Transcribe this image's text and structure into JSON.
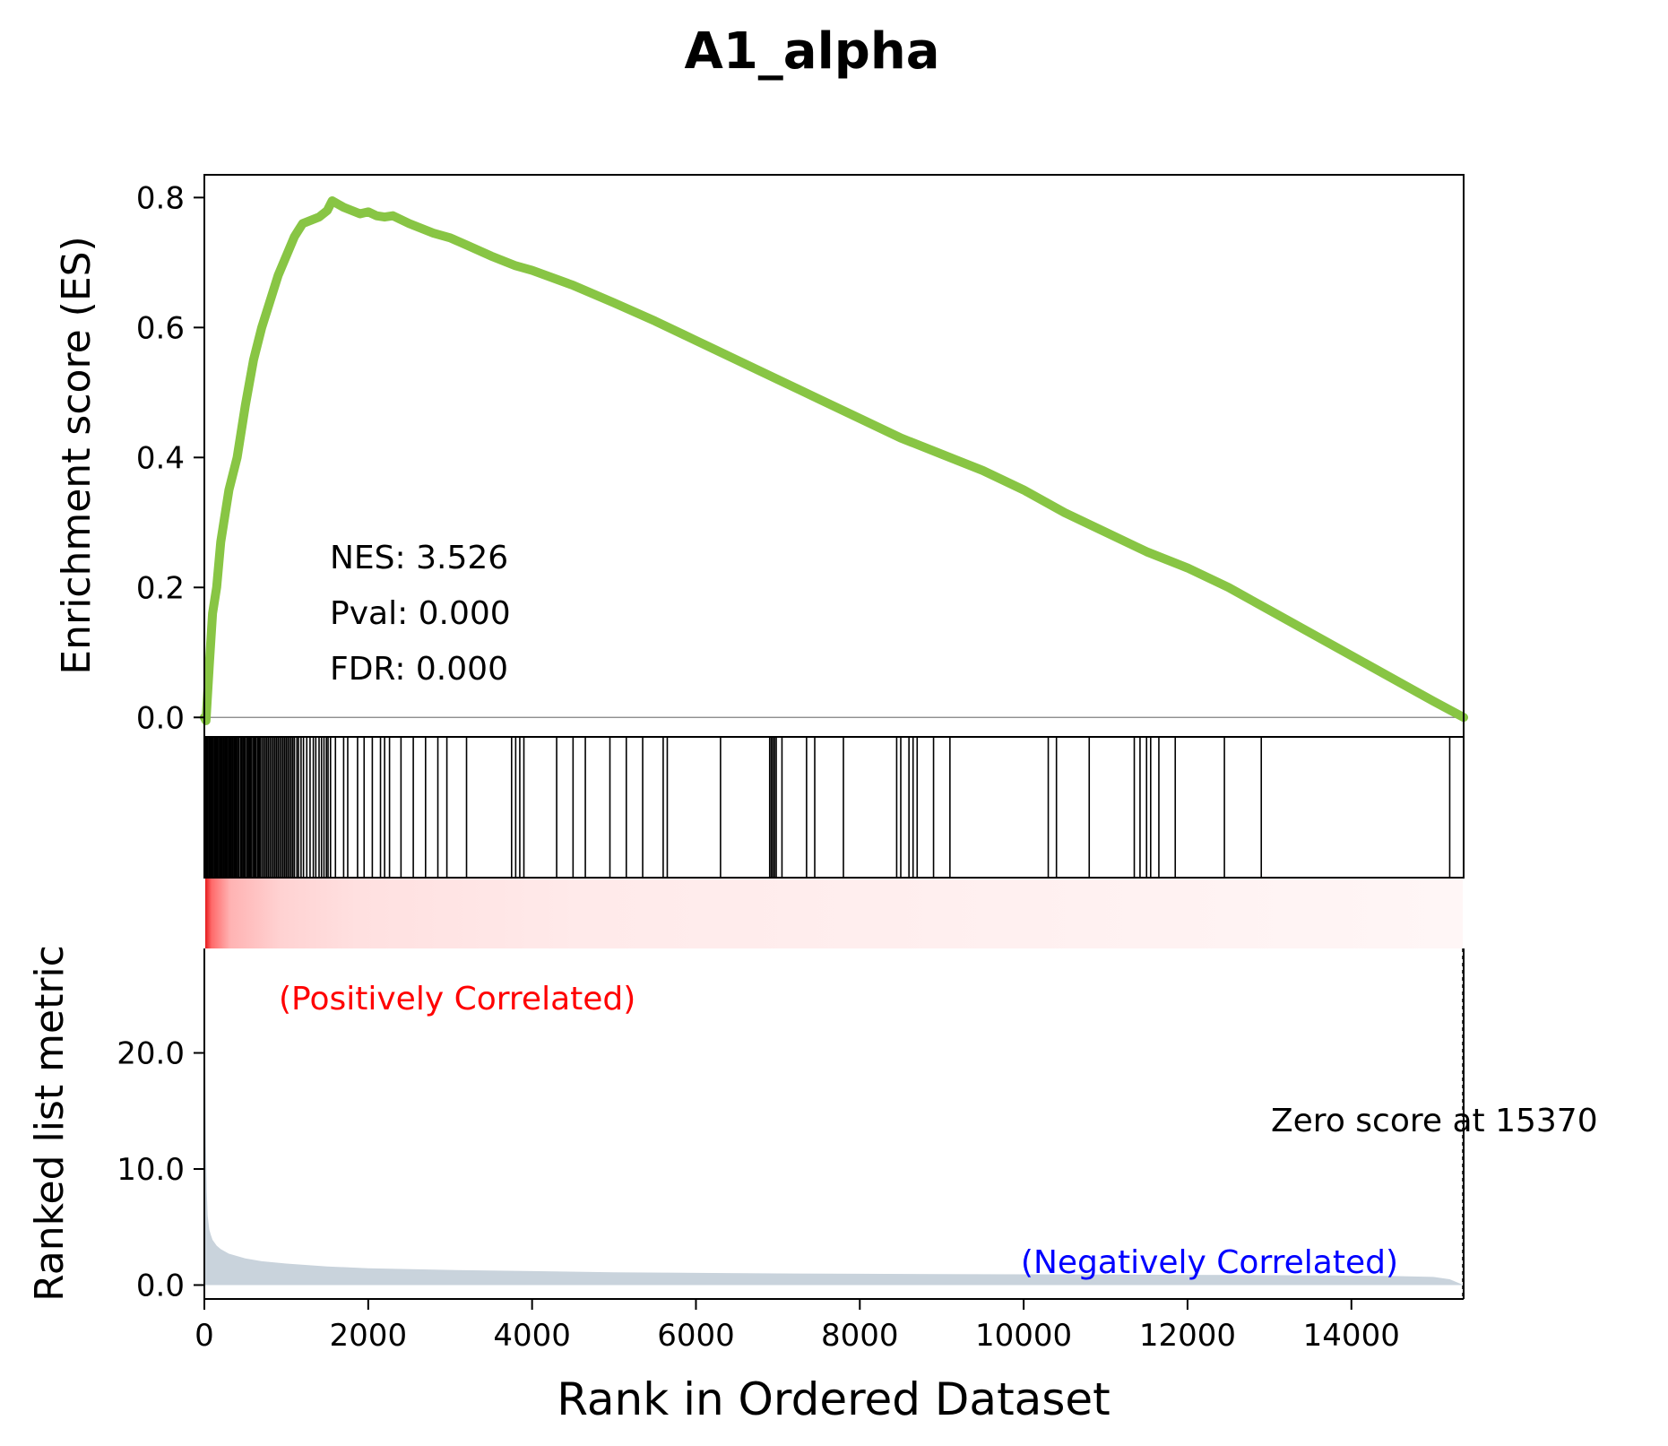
{
  "chart_data": {
    "type": "line",
    "title": "A1_alpha",
    "xlabel": "Rank in Ordered Dataset",
    "es_panel": {
      "ylabel": "Enrichment score (ES)",
      "ylim": [
        -0.03,
        0.835
      ],
      "yticks": [
        0.0,
        0.2,
        0.4,
        0.6,
        0.8
      ],
      "ytick_labels": [
        "0.0",
        "0.2",
        "0.4",
        "0.6",
        "0.8"
      ],
      "line_color": "#88c544",
      "series": {
        "x": [
          0,
          20,
          60,
          100,
          150,
          200,
          300,
          400,
          500,
          600,
          700,
          800,
          900,
          1000,
          1100,
          1200,
          1300,
          1400,
          1500,
          1560,
          1700,
          1800,
          1900,
          2000,
          2100,
          2200,
          2300,
          2500,
          2800,
          3000,
          3200,
          3500,
          3800,
          4000,
          4500,
          5000,
          5500,
          6000,
          6500,
          7000,
          7500,
          8000,
          8500,
          9000,
          9500,
          10000,
          10500,
          11000,
          11500,
          12000,
          12500,
          13000,
          13500,
          14000,
          14500,
          15000,
          15370
        ],
        "y": [
          0.0,
          -0.005,
          0.08,
          0.16,
          0.2,
          0.27,
          0.35,
          0.4,
          0.48,
          0.55,
          0.6,
          0.64,
          0.68,
          0.71,
          0.74,
          0.76,
          0.765,
          0.77,
          0.78,
          0.795,
          0.785,
          0.78,
          0.775,
          0.778,
          0.772,
          0.77,
          0.772,
          0.76,
          0.745,
          0.738,
          0.727,
          0.71,
          0.695,
          0.688,
          0.665,
          0.638,
          0.61,
          0.58,
          0.55,
          0.52,
          0.49,
          0.46,
          0.43,
          0.405,
          0.38,
          0.35,
          0.315,
          0.285,
          0.255,
          0.23,
          0.2,
          0.165,
          0.13,
          0.095,
          0.06,
          0.025,
          0.0
        ]
      }
    },
    "stats": {
      "nes": "NES: 3.526",
      "pval": "Pval: 0.000",
      "fdr": "FDR: 0.000"
    },
    "hits": [
      10,
      20,
      30,
      45,
      60,
      70,
      85,
      95,
      110,
      125,
      140,
      150,
      160,
      175,
      190,
      200,
      215,
      230,
      240,
      255,
      270,
      285,
      300,
      315,
      330,
      345,
      360,
      375,
      390,
      405,
      420,
      440,
      455,
      470,
      485,
      500,
      520,
      535,
      550,
      565,
      580,
      600,
      615,
      630,
      650,
      665,
      680,
      700,
      720,
      740,
      760,
      780,
      800,
      820,
      840,
      860,
      880,
      900,
      920,
      940,
      960,
      980,
      1000,
      1020,
      1040,
      1060,
      1080,
      1100,
      1130,
      1150,
      1180,
      1210,
      1250,
      1290,
      1330,
      1360,
      1400,
      1430,
      1460,
      1490,
      1510,
      1540,
      1600,
      1700,
      1750,
      1870,
      1950,
      2050,
      2150,
      2200,
      2260,
      2400,
      2550,
      2700,
      2850,
      2960,
      3200,
      3750,
      3800,
      3850,
      3900,
      4300,
      4500,
      4650,
      4950,
      5150,
      5350,
      5600,
      5650,
      6300,
      6900,
      6920,
      6940,
      6960,
      6980,
      7050,
      7350,
      7450,
      7800,
      8450,
      8500,
      8600,
      8650,
      8700,
      8900,
      9100,
      10300,
      10400,
      10800,
      11350,
      11420,
      11500,
      11550,
      11650,
      11850,
      12450,
      12900,
      15200
    ],
    "gradient": {
      "colormap": "reds",
      "description": ""
    },
    "metric_panel": {
      "ylabel": "Ranked list metric",
      "ylim": [
        -1.2,
        29.0
      ],
      "yticks": [
        0.0,
        10.0,
        20.0
      ],
      "ytick_labels": [
        "0.0",
        "10.0",
        "20.0"
      ],
      "fill_color": "#c9d3dc",
      "series": {
        "x": [
          0,
          10,
          20,
          30,
          40,
          60,
          80,
          100,
          150,
          200,
          300,
          400,
          500,
          700,
          1000,
          1500,
          2000,
          3000,
          4000,
          5000,
          6000,
          7000,
          8000,
          9000,
          10000,
          11000,
          12000,
          13000,
          14000,
          14500,
          15000,
          15200,
          15370
        ],
        "y": [
          28.0,
          20.0,
          12.0,
          8.0,
          6.0,
          4.8,
          4.3,
          3.9,
          3.4,
          3.1,
          2.7,
          2.5,
          2.3,
          2.05,
          1.85,
          1.6,
          1.45,
          1.3,
          1.2,
          1.1,
          1.05,
          1.0,
          0.97,
          0.94,
          0.92,
          0.9,
          0.88,
          0.86,
          0.82,
          0.78,
          0.7,
          0.5,
          0.0
        ]
      },
      "positive_label": "(Positively Correlated)",
      "negative_label": "(Negatively Correlated)",
      "positive_color": "#ff0000",
      "negative_color": "#0000ff",
      "zero_score_label": "Zero score at 15370",
      "zero_score_x": 15370
    },
    "x_axis": {
      "xlim": [
        0,
        15370
      ],
      "xticks": [
        0,
        2000,
        4000,
        6000,
        8000,
        10000,
        12000,
        14000
      ],
      "xtick_labels": [
        "0",
        "2000",
        "4000",
        "6000",
        "8000",
        "10000",
        "12000",
        "14000"
      ]
    }
  }
}
